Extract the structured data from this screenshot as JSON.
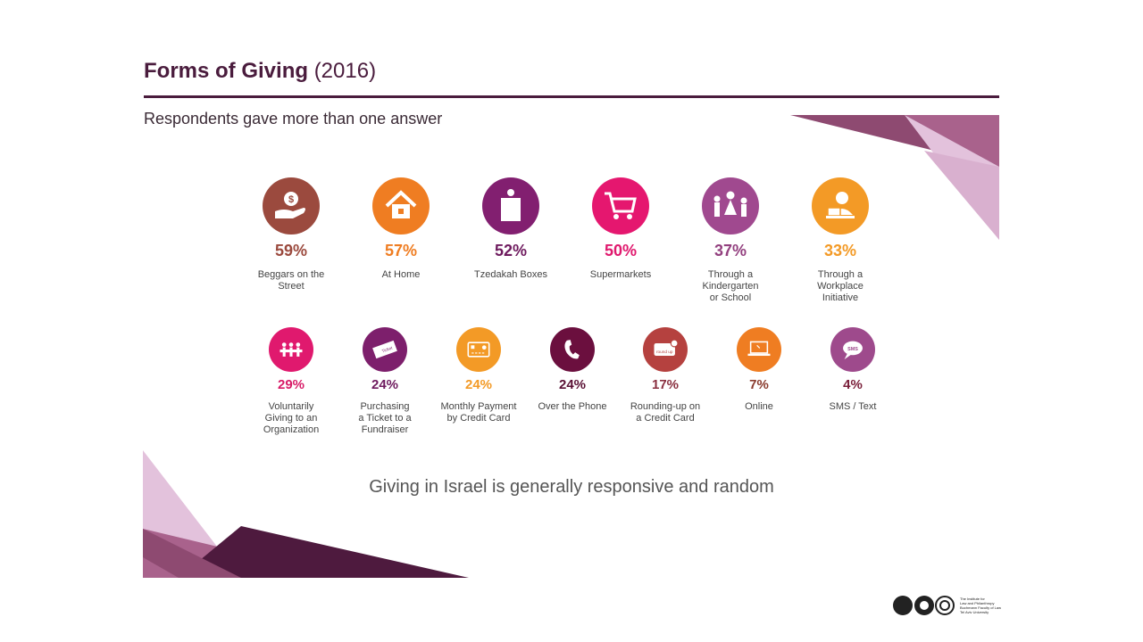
{
  "header": {
    "title_bold": "Forms of Giving",
    "title_year": "(2016)",
    "subtitle": "Respondents gave more than one answer"
  },
  "colors": {
    "title": "#4a1c3d",
    "deco_dark": "#4e1a3e",
    "deco_mid": "#8e4a71",
    "deco_light": "#e3c2dc"
  },
  "row1": [
    {
      "pct": "59%",
      "label": [
        "Beggars on the",
        "Street"
      ],
      "color": "#9b4a3e",
      "pct_color": "#9b4a3e",
      "icon": "hand-dollar-icon"
    },
    {
      "pct": "57%",
      "label": [
        "At Home"
      ],
      "color": "#ef7d22",
      "pct_color": "#ef7d22",
      "icon": "house-icon"
    },
    {
      "pct": "52%",
      "label": [
        "Tzedakah Boxes"
      ],
      "color": "#821f70",
      "pct_color": "#6e1a5e",
      "icon": "charity-box-icon"
    },
    {
      "pct": "50%",
      "label": [
        "Supermarkets"
      ],
      "color": "#e5176f",
      "pct_color": "#e0196e",
      "icon": "shopping-cart-icon"
    },
    {
      "pct": "37%",
      "label": [
        "Through a",
        "Kindergarten",
        "or School"
      ],
      "color": "#a0498f",
      "pct_color": "#93407f",
      "icon": "family-icon"
    },
    {
      "pct": "33%",
      "label": [
        "Through a",
        "Workplace",
        "Initiative"
      ],
      "color": "#f39a26",
      "pct_color": "#f39a26",
      "icon": "worker-desk-icon"
    }
  ],
  "row2": [
    {
      "pct": "29%",
      "label": [
        "Voluntarily",
        "Giving to an",
        "Organization"
      ],
      "color": "#e0196e",
      "pct_color": "#d81b67",
      "icon": "people-chain-icon"
    },
    {
      "pct": "24%",
      "label": [
        "Purchasing",
        "a Ticket to a",
        "Fundraiser"
      ],
      "color": "#7d1f6c",
      "pct_color": "#6e1a5e",
      "icon": "ticket-icon",
      "icon_text": "Ticket"
    },
    {
      "pct": "24%",
      "label": [
        "Monthly Payment",
        "by Credit Card"
      ],
      "color": "#f39a26",
      "pct_color": "#f39a26",
      "icon": "credit-card-icon"
    },
    {
      "pct": "24%",
      "label": [
        "Over the Phone"
      ],
      "color": "#6b0f3e",
      "pct_color": "#5a1034",
      "icon": "phone-icon"
    },
    {
      "pct": "17%",
      "label": [
        "Rounding-up on",
        "a Credit Card"
      ],
      "color": "#b5413f",
      "pct_color": "#8a3040",
      "icon": "round-up-card-icon",
      "icon_text": "round up"
    },
    {
      "pct": "7%",
      "label": [
        "Online"
      ],
      "color": "#ef7d22",
      "pct_color": "#8a3b2e",
      "icon": "laptop-icon"
    },
    {
      "pct": "4%",
      "label": [
        "SMS / Text"
      ],
      "color": "#9e4a8c",
      "pct_color": "#7a1f3a",
      "icon": "sms-bubble-icon",
      "icon_text": "SMS"
    }
  ],
  "footer": {
    "statement": "Giving in Israel is generally responsive and random"
  },
  "logo": {
    "text": [
      "The Institute for",
      "Law and Philanthropy",
      "Buchmann Faculty of Law",
      "Tel Aviv University"
    ]
  }
}
